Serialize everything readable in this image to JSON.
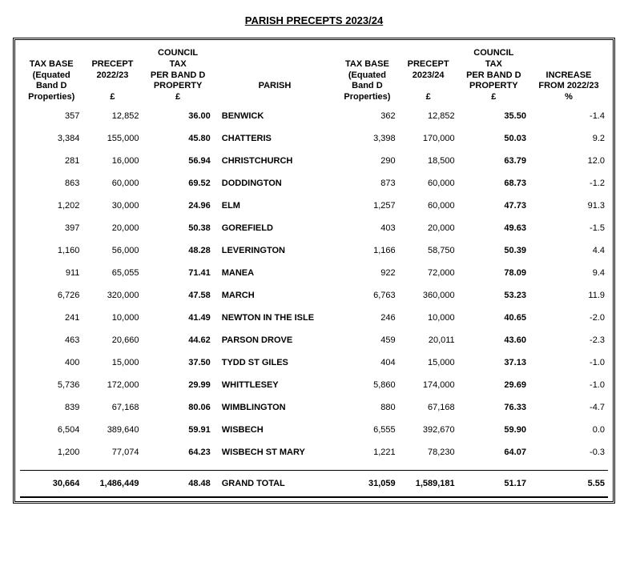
{
  "title": "PARISH PRECEPTS 2023/24",
  "columns": {
    "tax_base_22": [
      "TAX BASE",
      "(Equated",
      "Band D",
      "Properties)",
      ""
    ],
    "precept_22": [
      "",
      "PRECEPT",
      "2022/23",
      "",
      "£"
    ],
    "ctax_22": [
      "COUNCIL",
      "TAX",
      "PER BAND D",
      "PROPERTY",
      "£"
    ],
    "parish": [
      "",
      "",
      "PARISH",
      "",
      ""
    ],
    "tax_base_23": [
      "TAX BASE",
      "(Equated",
      "Band D",
      "Properties)",
      ""
    ],
    "precept_23": [
      "",
      "PRECEPT",
      "2023/24",
      "",
      "£"
    ],
    "ctax_23": [
      "COUNCIL",
      "TAX",
      "PER BAND D",
      "PROPERTY",
      "£"
    ],
    "increase": [
      "",
      "",
      "INCREASE",
      "FROM 2022/23",
      "%"
    ]
  },
  "rows": [
    {
      "tb22": "357",
      "pc22": "12,852",
      "ct22": "36.00",
      "parish": "BENWICK",
      "tb23": "362",
      "pc23": "12,852",
      "ct23": "35.50",
      "inc": "-1.4"
    },
    {
      "tb22": "3,384",
      "pc22": "155,000",
      "ct22": "45.80",
      "parish": "CHATTERIS",
      "tb23": "3,398",
      "pc23": "170,000",
      "ct23": "50.03",
      "inc": "9.2"
    },
    {
      "tb22": "281",
      "pc22": "16,000",
      "ct22": "56.94",
      "parish": "CHRISTCHURCH",
      "tb23": "290",
      "pc23": "18,500",
      "ct23": "63.79",
      "inc": "12.0"
    },
    {
      "tb22": "863",
      "pc22": "60,000",
      "ct22": "69.52",
      "parish": "DODDINGTON",
      "tb23": "873",
      "pc23": "60,000",
      "ct23": "68.73",
      "inc": "-1.2"
    },
    {
      "tb22": "1,202",
      "pc22": "30,000",
      "ct22": "24.96",
      "parish": "ELM",
      "tb23": "1,257",
      "pc23": "60,000",
      "ct23": "47.73",
      "inc": "91.3"
    },
    {
      "tb22": "397",
      "pc22": "20,000",
      "ct22": "50.38",
      "parish": "GOREFIELD",
      "tb23": "403",
      "pc23": "20,000",
      "ct23": "49.63",
      "inc": "-1.5"
    },
    {
      "tb22": "1,160",
      "pc22": "56,000",
      "ct22": "48.28",
      "parish": "LEVERINGTON",
      "tb23": "1,166",
      "pc23": "58,750",
      "ct23": "50.39",
      "inc": "4.4"
    },
    {
      "tb22": "911",
      "pc22": "65,055",
      "ct22": "71.41",
      "parish": "MANEA",
      "tb23": "922",
      "pc23": "72,000",
      "ct23": "78.09",
      "inc": "9.4"
    },
    {
      "tb22": "6,726",
      "pc22": "320,000",
      "ct22": "47.58",
      "parish": "MARCH",
      "tb23": "6,763",
      "pc23": "360,000",
      "ct23": "53.23",
      "inc": "11.9"
    },
    {
      "tb22": "241",
      "pc22": "10,000",
      "ct22": "41.49",
      "parish": "NEWTON IN THE ISLE",
      "tb23": "246",
      "pc23": "10,000",
      "ct23": "40.65",
      "inc": "-2.0"
    },
    {
      "tb22": "463",
      "pc22": "20,660",
      "ct22": "44.62",
      "parish": "PARSON DROVE",
      "tb23": "459",
      "pc23": "20,011",
      "ct23": "43.60",
      "inc": "-2.3"
    },
    {
      "tb22": "400",
      "pc22": "15,000",
      "ct22": "37.50",
      "parish": "TYDD ST GILES",
      "tb23": "404",
      "pc23": "15,000",
      "ct23": "37.13",
      "inc": "-1.0"
    },
    {
      "tb22": "5,736",
      "pc22": "172,000",
      "ct22": "29.99",
      "parish": "WHITTLESEY",
      "tb23": "5,860",
      "pc23": "174,000",
      "ct23": "29.69",
      "inc": "-1.0"
    },
    {
      "tb22": "839",
      "pc22": "67,168",
      "ct22": "80.06",
      "parish": "WIMBLINGTON",
      "tb23": "880",
      "pc23": "67,168",
      "ct23": "76.33",
      "inc": "-4.7"
    },
    {
      "tb22": "6,504",
      "pc22": "389,640",
      "ct22": "59.91",
      "parish": "WISBECH",
      "tb23": "6,555",
      "pc23": "392,670",
      "ct23": "59.90",
      "inc": "0.0"
    },
    {
      "tb22": "1,200",
      "pc22": "77,074",
      "ct22": "64.23",
      "parish": "WISBECH ST MARY",
      "tb23": "1,221",
      "pc23": "78,230",
      "ct23": "64.07",
      "inc": "-0.3"
    }
  ],
  "total": {
    "label": "GRAND TOTAL",
    "tb22": "30,664",
    "pc22": "1,486,449",
    "ct22": "48.48",
    "tb23": "31,059",
    "pc23": "1,589,181",
    "ct23": "51.17",
    "inc": "5.55"
  }
}
